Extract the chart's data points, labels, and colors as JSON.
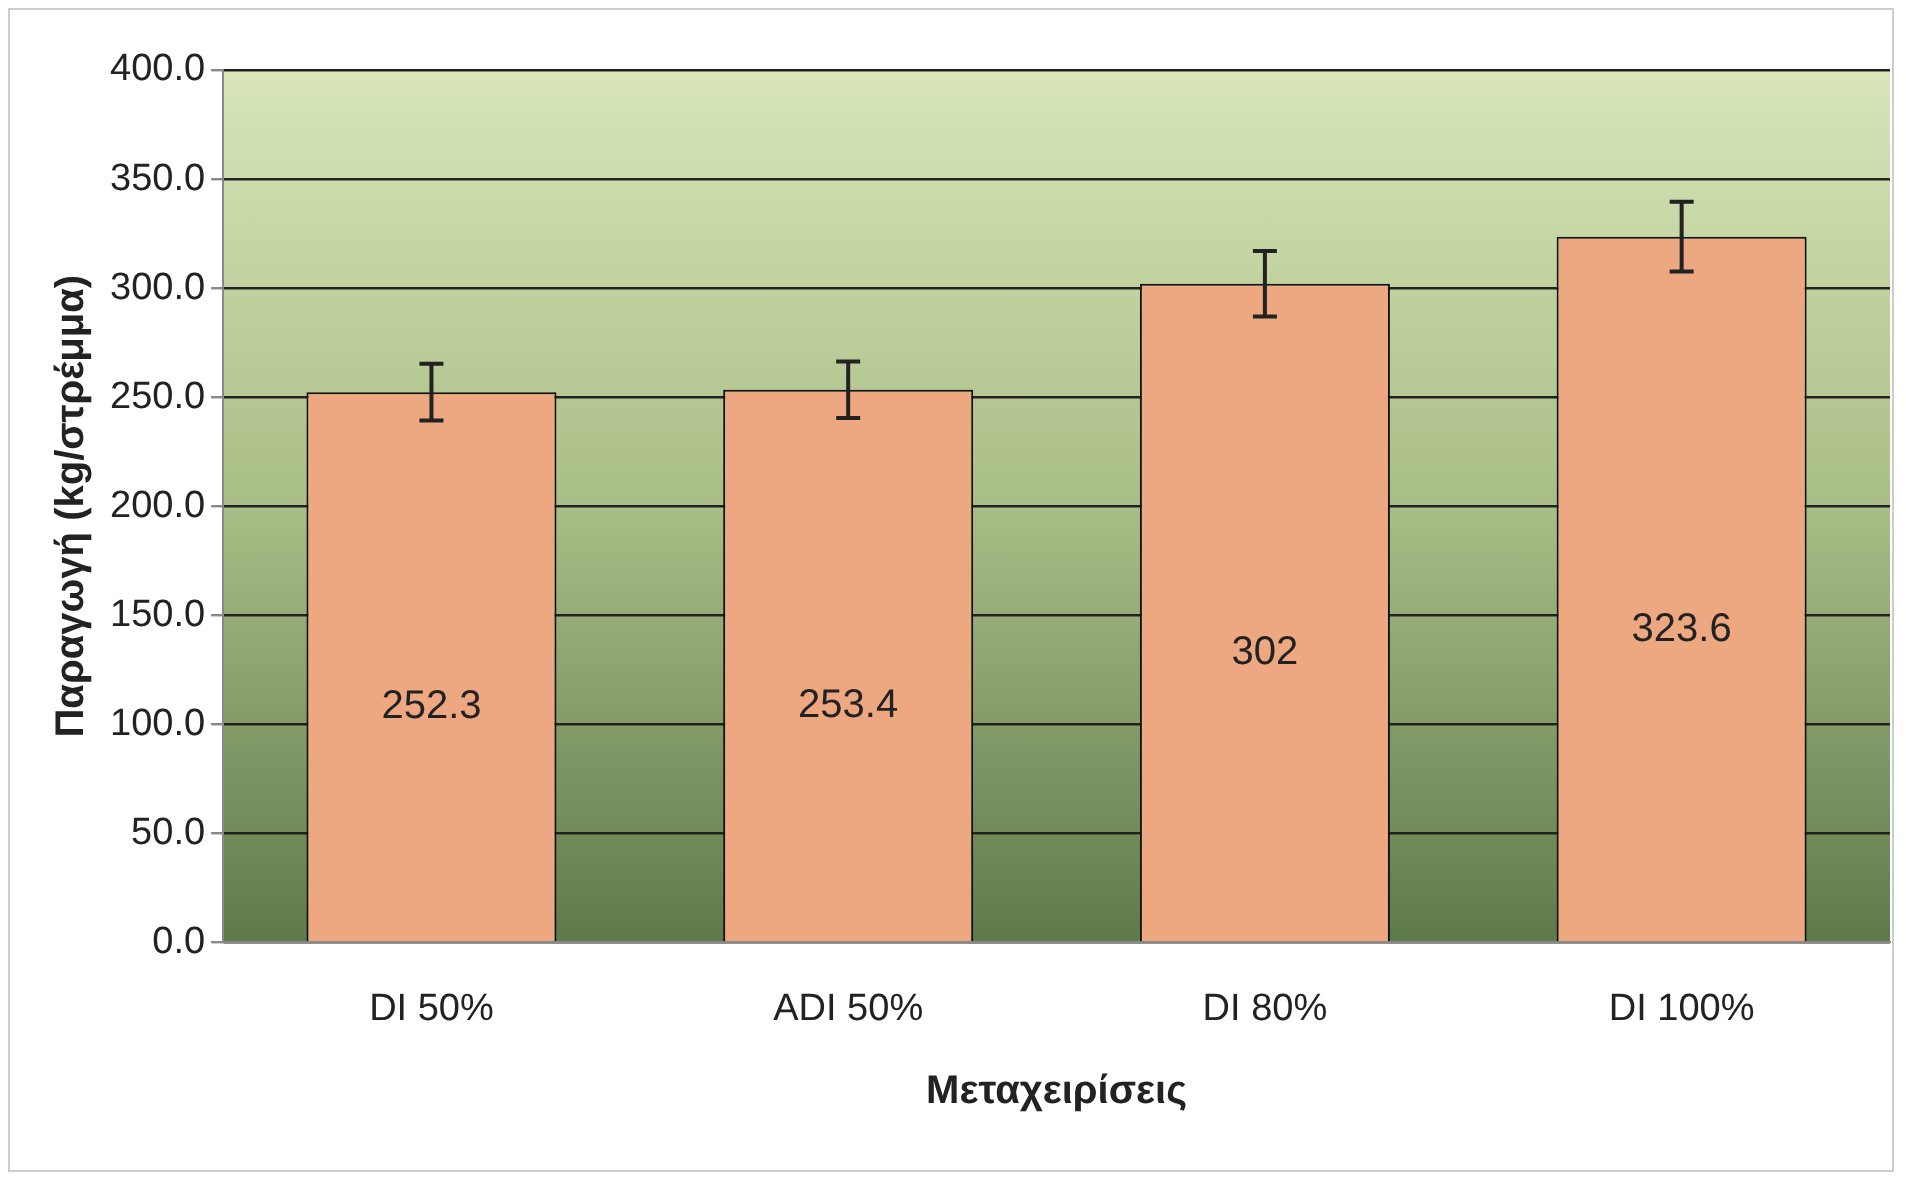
{
  "chart_data": {
    "type": "bar",
    "xlabel": "Μεταχειρίσεις",
    "ylabel": "Παραγωγή (kg/στρέμμα)",
    "categories": [
      "DI 50%",
      "ADI 50%",
      "DI 80%",
      "DI 100%"
    ],
    "values": [
      252.3,
      253.4,
      302,
      323.6
    ],
    "errors": [
      13,
      13,
      15,
      16
    ],
    "color": "#eda882",
    "data_labels": true,
    "ylim": [
      0,
      400
    ],
    "yticks": [
      {
        "value": 0,
        "label": "0.0"
      },
      {
        "value": 50,
        "label": "50.0"
      },
      {
        "value": 100,
        "label": "100.0"
      },
      {
        "value": 150,
        "label": "150.0"
      },
      {
        "value": 200,
        "label": "200.0"
      },
      {
        "value": 250,
        "label": "250.0"
      },
      {
        "value": 300,
        "label": "300.0"
      },
      {
        "value": 350,
        "label": "350.0"
      },
      {
        "value": 400,
        "label": "400.0"
      }
    ],
    "grid": "y",
    "legend": false
  }
}
